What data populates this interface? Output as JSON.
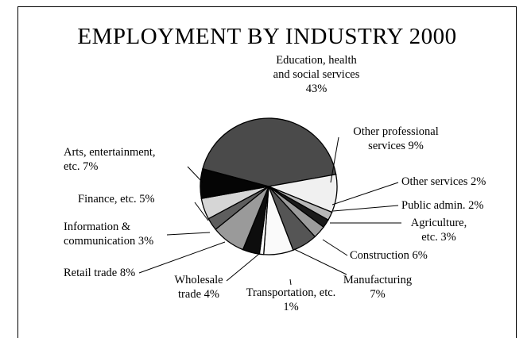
{
  "chart_data": {
    "type": "pie",
    "title": "EMPLOYMENT BY INDUSTRY 2000",
    "slices": [
      {
        "lines": [
          "Education, health",
          "and social services",
          "43%"
        ],
        "value": 43,
        "color": "#4a4a4a"
      },
      {
        "lines": [
          "Other professional",
          "services 9%"
        ],
        "value": 9,
        "color": "#f0f0f0"
      },
      {
        "lines": [
          "Other services 2%"
        ],
        "value": 2,
        "color": "#b8b8b8"
      },
      {
        "lines": [
          "Public admin. 2%"
        ],
        "value": 2,
        "color": "#1a1a1a"
      },
      {
        "lines": [
          "Agriculture,",
          "etc. 3%"
        ],
        "value": 3,
        "color": "#9c9c9c"
      },
      {
        "lines": [
          "Construction 6%"
        ],
        "value": 6,
        "color": "#555555"
      },
      {
        "lines": [
          "Manufacturing",
          "7%"
        ],
        "value": 7,
        "color": "#fafafa"
      },
      {
        "lines": [
          "Transportation, etc.",
          "1%"
        ],
        "value": 1,
        "color": "#ffffff"
      },
      {
        "lines": [
          "Wholesale",
          "trade 4%"
        ],
        "value": 4,
        "color": "#0d0d0d"
      },
      {
        "lines": [
          "Retail trade 8%"
        ],
        "value": 8,
        "color": "#9a9a9a"
      },
      {
        "lines": [
          "Information &",
          "communication 3%"
        ],
        "value": 3,
        "color": "#5e5e5e"
      },
      {
        "lines": [
          "Finance, etc. 5%"
        ],
        "value": 5,
        "color": "#d6d6d6"
      },
      {
        "lines": [
          "Arts, entertainment,",
          "etc. 7%"
        ],
        "value": 7,
        "color": "#050505"
      }
    ]
  }
}
